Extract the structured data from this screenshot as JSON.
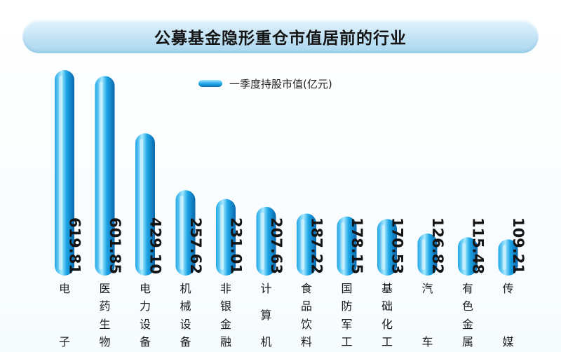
{
  "title": "公募基金隐形重仓市值居前的行业",
  "chart_data": {
    "type": "bar",
    "title": "公募基金隐形重仓市值居前的行业",
    "legend": {
      "label": "一季度持股市值(亿元)",
      "placement": "top-center"
    },
    "categories": [
      "电子",
      "医药生物",
      "电力设备",
      "机械设备",
      "非银金融",
      "计算机",
      "食品饮料",
      "国防军工",
      "基础化工",
      "汽车",
      "有色金属",
      "传媒"
    ],
    "series": [
      {
        "name": "一季度持股市值(亿元)",
        "values": [
          619.81,
          601.85,
          429.1,
          257.62,
          231.01,
          207.63,
          187.22,
          178.15,
          170.53,
          126.82,
          115.48,
          109.21
        ]
      }
    ],
    "value_labels": [
      "619.81",
      "601.85",
      "429.10",
      "257.62",
      "231.01",
      "207.63",
      "187.22",
      "178.15",
      "170.53",
      "126.82",
      "115.48",
      "109.21"
    ],
    "ylim": [
      0,
      650
    ],
    "grid": false,
    "bar_color_light": "#a6e9ff",
    "bar_color_mid": "#1ea6e6",
    "bar_color_dark": "#0a67ad"
  }
}
